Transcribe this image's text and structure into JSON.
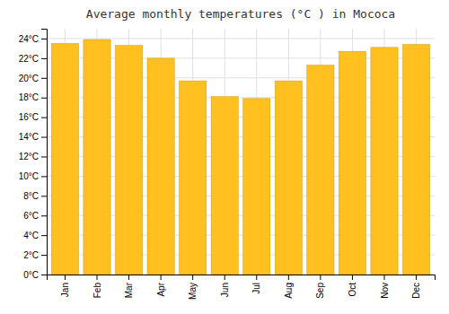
{
  "chart_data": {
    "type": "bar",
    "title": "Average monthly temperatures (°C ) in Mococa",
    "categories": [
      "Jan",
      "Feb",
      "Mar",
      "Apr",
      "May",
      "Jun",
      "Jul",
      "Aug",
      "Sep",
      "Oct",
      "Nov",
      "Dec"
    ],
    "values": [
      23.5,
      23.9,
      23.3,
      22.0,
      19.7,
      18.1,
      17.9,
      19.7,
      21.3,
      22.7,
      23.1,
      23.4
    ],
    "color": "#FFC020",
    "ylim": [
      0,
      25
    ],
    "yticks": [
      {
        "value": 0,
        "label": "0°C"
      },
      {
        "value": 2,
        "label": "2°C"
      },
      {
        "value": 4,
        "label": "4°C"
      },
      {
        "value": 6,
        "label": "6°C"
      },
      {
        "value": 8,
        "label": "8°C"
      },
      {
        "value": 10,
        "label": "10°C"
      },
      {
        "value": 12,
        "label": "12°C"
      },
      {
        "value": 14,
        "label": "14°C"
      },
      {
        "value": 16,
        "label": "16°C"
      },
      {
        "value": 18,
        "label": "18°C"
      },
      {
        "value": 20,
        "label": "20°C"
      },
      {
        "value": 22,
        "label": "22°C"
      },
      {
        "value": 24,
        "label": "24°C"
      }
    ],
    "grid": true
  }
}
